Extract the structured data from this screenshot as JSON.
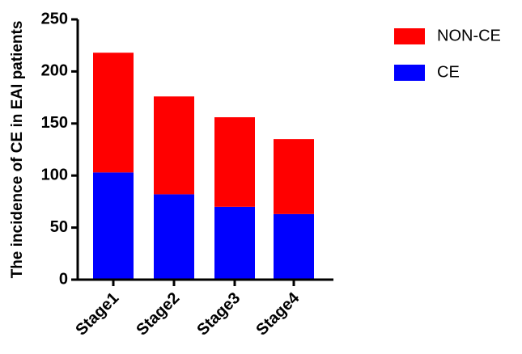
{
  "chart_data": {
    "type": "stacked_bar",
    "y_label": "The incidence of CE in EAI patients",
    "categories": [
      "Stage1",
      "Stage2",
      "Stage3",
      "Stage4"
    ],
    "series": [
      {
        "name": "CE",
        "color": "#0000ff",
        "values": [
          103,
          82,
          70,
          63
        ]
      },
      {
        "name": "NON-CE",
        "color": "#ff0000",
        "values": [
          115,
          94,
          86,
          72
        ]
      }
    ],
    "ylim": [
      0,
      250
    ],
    "yticks": [
      0,
      50,
      100,
      150,
      200,
      250
    ],
    "legend": "right"
  }
}
